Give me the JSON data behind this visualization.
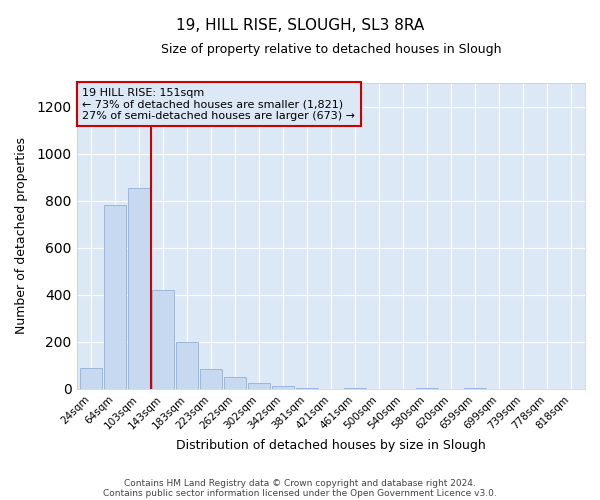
{
  "title1": "19, HILL RISE, SLOUGH, SL3 8RA",
  "title2": "Size of property relative to detached houses in Slough",
  "xlabel": "Distribution of detached houses by size in Slough",
  "ylabel": "Number of detached properties",
  "bar_labels": [
    "24sqm",
    "64sqm",
    "103sqm",
    "143sqm",
    "183sqm",
    "223sqm",
    "262sqm",
    "302sqm",
    "342sqm",
    "381sqm",
    "421sqm",
    "461sqm",
    "500sqm",
    "540sqm",
    "580sqm",
    "620sqm",
    "659sqm",
    "699sqm",
    "739sqm",
    "778sqm",
    "818sqm"
  ],
  "bar_values": [
    90,
    780,
    855,
    420,
    200,
    85,
    50,
    25,
    10,
    5,
    0,
    5,
    0,
    0,
    5,
    0,
    5,
    0,
    0,
    0,
    0
  ],
  "bar_color": "#c6d9f0",
  "bar_edge_color": "#9ab8dc",
  "vline_color": "#cc0000",
  "vline_x": 2.5,
  "ylim_max": 1300,
  "yticks": [
    0,
    200,
    400,
    600,
    800,
    1000,
    1200
  ],
  "annotation_text": "19 HILL RISE: 151sqm\n← 73% of detached houses are smaller (1,821)\n27% of semi-detached houses are larger (673) →",
  "fig_bg_color": "#ffffff",
  "plot_bg_color": "#dce8f5",
  "grid_color": "#ffffff",
  "footer_line1": "Contains HM Land Registry data © Crown copyright and database right 2024.",
  "footer_line2": "Contains public sector information licensed under the Open Government Licence v3.0."
}
